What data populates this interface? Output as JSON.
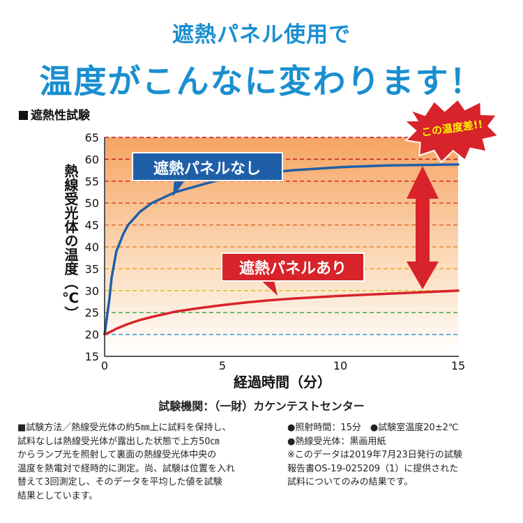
{
  "header": {
    "line1": "遮熱パネル使用で",
    "line2": "温度がこんなに変わります！"
  },
  "section_title": "遮熱性試験",
  "badge": "この温度差!!",
  "chart_data": {
    "type": "line",
    "xlabel": "経過時間（分）",
    "ylabel": "熱線受光体の温度（℃）",
    "xlim": [
      0,
      15
    ],
    "ylim": [
      15,
      65
    ],
    "x_ticks": [
      0,
      5,
      10,
      15
    ],
    "y_ticks": [
      15,
      20,
      25,
      30,
      35,
      40,
      45,
      50,
      55,
      60,
      65
    ],
    "grid": "dashed horizontal, colored",
    "series": [
      {
        "name": "遮熱パネルなし",
        "color": "#1f5fa8",
        "x": [
          0,
          0.1,
          0.2,
          0.3,
          0.5,
          0.8,
          1,
          1.5,
          2,
          3,
          4,
          5,
          6,
          7,
          8,
          10,
          12,
          15
        ],
        "y": [
          20,
          24,
          28,
          33,
          39,
          43,
          45,
          48,
          50,
          52.5,
          54,
          55.5,
          56.5,
          57,
          57.5,
          58.2,
          58.6,
          58.8
        ]
      },
      {
        "name": "遮熱パネルあり",
        "color": "#d8232a",
        "x": [
          0,
          0.25,
          0.5,
          1,
          1.5,
          2,
          3,
          4,
          5,
          6,
          7,
          8,
          10,
          12,
          15
        ],
        "y": [
          20,
          20.6,
          21.3,
          22.4,
          23.3,
          24,
          25.2,
          26,
          26.7,
          27.3,
          27.8,
          28.2,
          28.8,
          29.3,
          30
        ]
      }
    ]
  },
  "source": "試験機関：（一財）カケンテストセンター",
  "notes": {
    "method": [
      "■試験方法／熱線受光体の約5㎜上に試料を保持し、",
      "試料なしは熱線受光体が露出した状態で上方50㎝",
      "からランプ光を照射して裏面の熱線受光体中央の",
      "温度を熱電対で経時的に測定。尚、試験は位置を入れ",
      "替えて3回測定し、そのデータを平均した値を試験",
      "結果としています。"
    ],
    "conditions": [
      "●照射時間：15分　●試験室温度20±2℃",
      "●熱線受光体：黒画用紙",
      "※このデータは2019年7月23日発行の試験",
      "報告書OS-19-025209（1）に提供された",
      "試料についてのみの結果です。"
    ]
  }
}
